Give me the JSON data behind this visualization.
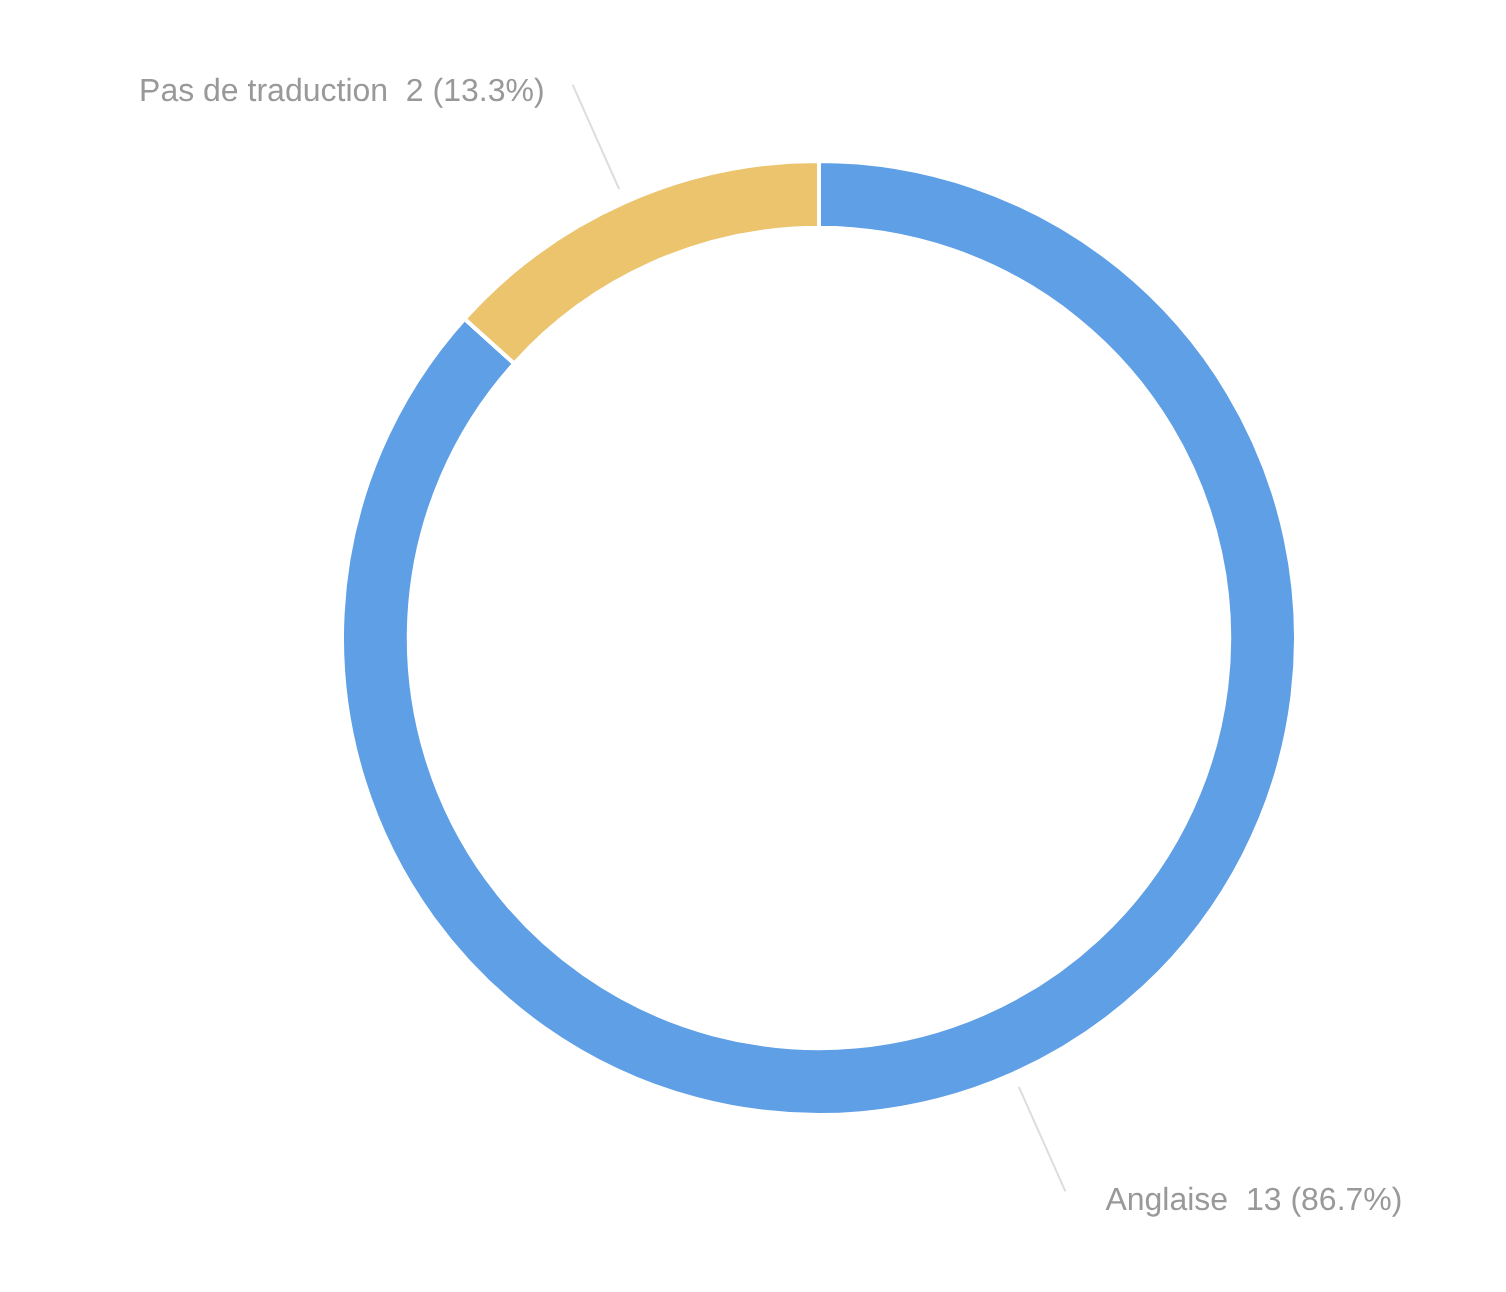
{
  "chart_data": {
    "type": "donut",
    "categories": [
      "Anglaise",
      "Pas de traduction"
    ],
    "values": [
      13,
      2
    ],
    "colors": [
      "#5e9fe6",
      "#ebc46d"
    ],
    "value_labels": [
      "13 (86.7%)",
      "2 (13.3%)"
    ],
    "legend": false
  }
}
